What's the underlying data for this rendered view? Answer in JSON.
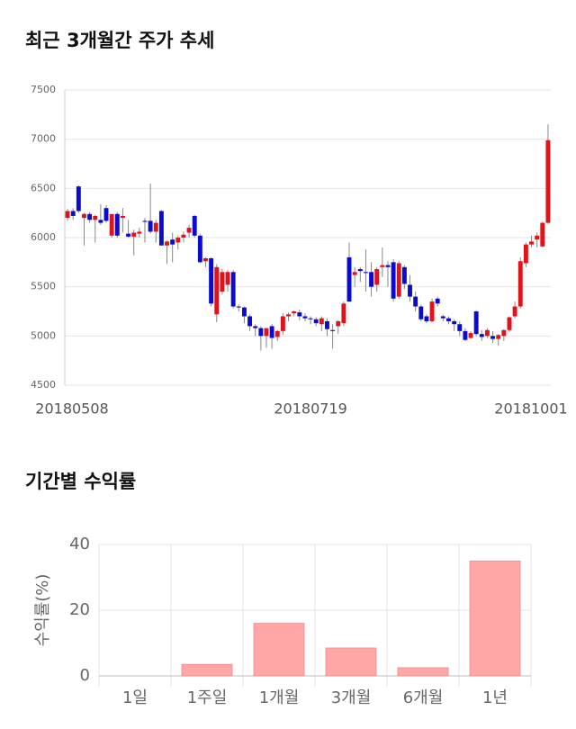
{
  "chart_data": [
    {
      "type": "candlestick",
      "title": "최근 3개월간 주가 추세",
      "categories": [
        "20180508",
        null,
        null,
        null,
        null,
        null,
        null,
        null,
        null,
        null,
        null,
        null,
        null,
        null,
        null,
        null,
        null,
        null,
        null,
        null,
        null,
        null,
        null,
        null,
        null,
        null,
        null,
        null,
        null,
        null,
        null,
        null,
        null,
        null,
        null,
        null,
        null,
        null,
        null,
        null,
        null,
        null,
        null,
        null,
        "20180719",
        null,
        null,
        null,
        null,
        null,
        null,
        null,
        null,
        null,
        null,
        null,
        null,
        null,
        null,
        null,
        null,
        null,
        null,
        null,
        null,
        null,
        null,
        null,
        null,
        null,
        null,
        null,
        null,
        null,
        null,
        null,
        null,
        null,
        null,
        null,
        null,
        null,
        null,
        null,
        null,
        null,
        null,
        "20181001"
      ],
      "ohlc": [
        [
          6200,
          6290,
          6170,
          6270
        ],
        [
          6270,
          6300,
          6180,
          6220
        ],
        [
          6520,
          6530,
          6250,
          6270
        ],
        [
          6200,
          6250,
          5920,
          6240
        ],
        [
          6240,
          6260,
          6150,
          6180
        ],
        [
          6180,
          6230,
          5950,
          6220
        ],
        [
          6180,
          6340,
          6130,
          6150
        ],
        [
          6300,
          6330,
          6150,
          6170
        ],
        [
          6020,
          6240,
          6000,
          6240
        ],
        [
          6240,
          6260,
          6000,
          6020
        ],
        [
          6200,
          6300,
          6050,
          6220
        ],
        [
          6040,
          6180,
          6000,
          6010
        ],
        [
          6010,
          6080,
          5820,
          6050
        ],
        [
          6040,
          6100,
          6000,
          6060
        ],
        [
          6170,
          6200,
          5950,
          6160
        ],
        [
          6170,
          6550,
          6040,
          6060
        ],
        [
          6060,
          6180,
          5950,
          6150
        ],
        [
          6270,
          6280,
          5920,
          5920
        ],
        [
          5920,
          5970,
          5730,
          5960
        ],
        [
          5980,
          6050,
          5750,
          5930
        ],
        [
          5950,
          6020,
          5880,
          6000
        ],
        [
          6000,
          6060,
          5950,
          6030
        ],
        [
          6050,
          6130,
          6000,
          6100
        ],
        [
          6220,
          6230,
          6000,
          6020
        ],
        [
          6020,
          6040,
          5740,
          5750
        ],
        [
          5760,
          5800,
          5700,
          5790
        ],
        [
          5790,
          5800,
          5300,
          5330
        ],
        [
          5220,
          5730,
          5140,
          5700
        ],
        [
          5450,
          5680,
          5420,
          5650
        ],
        [
          5520,
          5670,
          5450,
          5650
        ],
        [
          5650,
          5670,
          5280,
          5300
        ],
        [
          5300,
          5320,
          5250,
          5290
        ],
        [
          5290,
          5300,
          5130,
          5200
        ],
        [
          5200,
          5220,
          5050,
          5100
        ],
        [
          5100,
          5120,
          5000,
          5080
        ],
        [
          5080,
          5100,
          4850,
          5000
        ],
        [
          5000,
          5080,
          4880,
          5080
        ],
        [
          5100,
          5120,
          4870,
          4980
        ],
        [
          4990,
          5060,
          4950,
          5050
        ],
        [
          5050,
          5230,
          5010,
          5200
        ],
        [
          5200,
          5240,
          5150,
          5220
        ],
        [
          5230,
          5260,
          5200,
          5250
        ],
        [
          5240,
          5270,
          5160,
          5200
        ],
        [
          5200,
          5230,
          5150,
          5180
        ],
        [
          5180,
          5200,
          5120,
          5170
        ],
        [
          5170,
          5190,
          5100,
          5130
        ],
        [
          5120,
          5200,
          5050,
          5180
        ],
        [
          5150,
          5180,
          5000,
          5070
        ],
        [
          5060,
          5120,
          4870,
          5050
        ],
        [
          5100,
          5160,
          5020,
          5150
        ],
        [
          5130,
          5350,
          5100,
          5330
        ],
        [
          5800,
          5950,
          5350,
          5350
        ],
        [
          5620,
          5700,
          5500,
          5650
        ],
        [
          5680,
          5700,
          5550,
          5660
        ],
        [
          5650,
          5880,
          5450,
          5640
        ],
        [
          5650,
          5750,
          5400,
          5500
        ],
        [
          5520,
          5700,
          5450,
          5680
        ],
        [
          5700,
          5900,
          5600,
          5720
        ],
        [
          5720,
          5760,
          5500,
          5700
        ],
        [
          5750,
          5780,
          5350,
          5380
        ],
        [
          5400,
          5760,
          5380,
          5740
        ],
        [
          5700,
          5720,
          5480,
          5530
        ],
        [
          5520,
          5620,
          5350,
          5400
        ],
        [
          5400,
          5450,
          5250,
          5300
        ],
        [
          5300,
          5320,
          5150,
          5170
        ],
        [
          5200,
          5220,
          5130,
          5150
        ],
        [
          5150,
          5380,
          5140,
          5350
        ],
        [
          5380,
          5400,
          5300,
          5330
        ],
        [
          5200,
          5220,
          5150,
          5180
        ],
        [
          5180,
          5200,
          5120,
          5150
        ],
        [
          5150,
          5170,
          5050,
          5120
        ],
        [
          5120,
          5150,
          5000,
          5050
        ],
        [
          5050,
          5080,
          4950,
          4960
        ],
        [
          4980,
          5050,
          4970,
          5030
        ],
        [
          5250,
          5260,
          5000,
          5020
        ],
        [
          5020,
          5060,
          4950,
          4990
        ],
        [
          5000,
          5080,
          4980,
          5060
        ],
        [
          5000,
          5050,
          4930,
          4970
        ],
        [
          4970,
          5020,
          4900,
          5010
        ],
        [
          5000,
          5070,
          4950,
          5060
        ],
        [
          5060,
          5200,
          5040,
          5190
        ],
        [
          5200,
          5350,
          5180,
          5300
        ],
        [
          5300,
          5800,
          5280,
          5760
        ],
        [
          5740,
          5950,
          5700,
          5930
        ],
        [
          5930,
          6020,
          5900,
          5960
        ],
        [
          5980,
          6050,
          5900,
          6020
        ],
        [
          5910,
          6160,
          5900,
          6150
        ],
        [
          6150,
          7150,
          6140,
          6990
        ]
      ],
      "up_color": "#e0131b",
      "down_color": "#0b0bd0",
      "ylim": [
        4500,
        7500
      ],
      "yticks": [
        4500,
        5000,
        5500,
        6000,
        6500,
        7000,
        7500
      ],
      "grid": true
    },
    {
      "type": "bar",
      "title": "기간별 수익률",
      "y_label": "수익률(%)",
      "categories": [
        "1일",
        "1주일",
        "1개월",
        "3개월",
        "6개월",
        "1년"
      ],
      "values": [
        0,
        3.5,
        16,
        8.5,
        2.5,
        35
      ],
      "color": "#ffa6a6",
      "ylim": [
        0,
        40
      ],
      "yticks": [
        0,
        20,
        40
      ],
      "grid": true
    }
  ]
}
